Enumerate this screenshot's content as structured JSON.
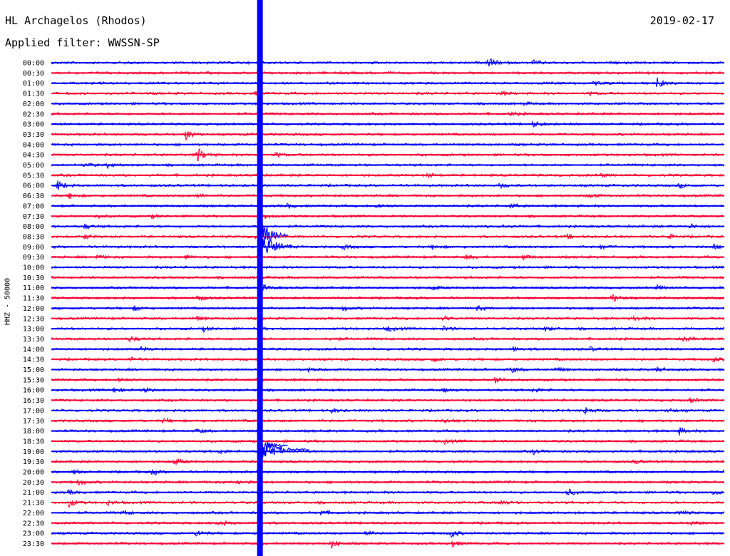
{
  "header": {
    "station": "HL Archagelos (Rhodos)",
    "date": "2019-02-17",
    "filter": "Applied filter: WWSSN-SP"
  },
  "chart_data": {
    "type": "line",
    "ylabel": "HHZ - 50000",
    "row_labels": [
      "00:00",
      "00:30",
      "01:00",
      "01:30",
      "02:00",
      "02:30",
      "03:00",
      "03:30",
      "04:00",
      "04:30",
      "05:00",
      "05:30",
      "06:00",
      "06:30",
      "07:00",
      "07:30",
      "08:00",
      "08:30",
      "09:00",
      "09:30",
      "10:00",
      "10:30",
      "11:00",
      "11:30",
      "12:00",
      "12:30",
      "13:00",
      "13:30",
      "14:00",
      "14:30",
      "15:00",
      "15:30",
      "16:00",
      "16:30",
      "17:00",
      "17:30",
      "18:00",
      "18:30",
      "19:00",
      "19:30",
      "20:00",
      "20:30",
      "21:00",
      "21:30",
      "22:00",
      "22:30",
      "23:00",
      "23:30"
    ],
    "colors": [
      "#0000ff",
      "#ff0033"
    ],
    "bursts_minutes": [
      [
        0,
        19.5,
        8
      ],
      [
        0,
        21.5,
        3
      ],
      [
        2,
        27,
        7
      ],
      [
        2,
        24.2,
        3
      ],
      [
        3,
        9,
        3
      ],
      [
        3,
        20,
        3
      ],
      [
        3,
        24,
        2
      ],
      [
        4,
        21,
        2
      ],
      [
        5,
        20.5,
        3
      ],
      [
        6,
        21.5,
        4
      ],
      [
        7,
        6,
        7
      ],
      [
        9,
        6.5,
        11
      ],
      [
        9,
        10,
        3
      ],
      [
        10,
        1.5,
        3
      ],
      [
        10,
        2.5,
        3
      ],
      [
        11,
        16.8,
        3
      ],
      [
        11,
        24.5,
        2
      ],
      [
        12,
        0.3,
        7
      ],
      [
        12,
        20,
        3
      ],
      [
        12,
        28,
        3
      ],
      [
        13,
        0.8,
        4
      ],
      [
        13,
        6.5,
        3
      ],
      [
        13,
        24,
        3
      ],
      [
        14,
        10.5,
        3
      ],
      [
        14,
        14.5,
        4
      ],
      [
        14,
        20.5,
        3
      ],
      [
        15,
        2,
        3
      ],
      [
        15,
        4.5,
        2
      ],
      [
        15,
        9.5,
        3
      ],
      [
        16,
        1.5,
        3
      ],
      [
        16,
        20,
        3
      ],
      [
        16,
        28.5,
        3
      ],
      [
        17,
        1.5,
        3
      ],
      [
        17,
        9,
        3
      ],
      [
        17,
        23,
        3
      ],
      [
        17,
        27.5,
        3
      ],
      [
        18,
        13,
        3
      ],
      [
        18,
        17,
        3
      ],
      [
        18,
        24.5,
        3
      ],
      [
        18,
        29.5,
        4
      ],
      [
        19,
        2,
        3
      ],
      [
        19,
        6,
        3
      ],
      [
        19,
        18.5,
        3
      ],
      [
        19,
        21,
        4
      ],
      [
        22,
        9.5,
        3
      ],
      [
        22,
        17,
        3
      ],
      [
        22,
        27,
        3
      ],
      [
        23,
        6.5,
        5
      ],
      [
        23,
        25,
        6
      ],
      [
        24,
        3.7,
        3
      ],
      [
        24,
        13,
        3
      ],
      [
        24,
        19,
        3
      ],
      [
        25,
        6.5,
        3
      ],
      [
        25,
        17.5,
        3
      ],
      [
        25,
        26,
        3
      ],
      [
        26,
        6.8,
        3
      ],
      [
        26,
        15,
        4
      ],
      [
        26,
        17.5,
        3
      ],
      [
        26,
        22,
        3
      ],
      [
        27,
        3.5,
        4
      ],
      [
        27,
        12.5,
        3
      ],
      [
        27,
        28.2,
        3
      ],
      [
        28,
        4,
        3
      ],
      [
        28,
        20.6,
        3
      ],
      [
        28,
        24,
        3
      ],
      [
        29,
        3.5,
        3
      ],
      [
        29,
        17,
        3
      ],
      [
        29,
        29.5,
        3
      ],
      [
        30,
        11.5,
        3
      ],
      [
        30,
        20.5,
        4
      ],
      [
        30,
        22.5,
        3
      ],
      [
        30,
        27,
        3
      ],
      [
        31,
        3,
        3
      ],
      [
        31,
        19.8,
        6
      ],
      [
        32,
        2.8,
        4
      ],
      [
        32,
        4.2,
        3
      ],
      [
        32,
        17.5,
        3
      ],
      [
        32,
        21.5,
        3
      ],
      [
        33,
        28.5,
        3
      ],
      [
        34,
        12.5,
        3
      ],
      [
        34,
        23.8,
        5
      ],
      [
        34,
        27.5,
        3
      ],
      [
        35,
        5,
        3
      ],
      [
        35,
        17.5,
        3
      ],
      [
        36,
        6.5,
        3
      ],
      [
        36,
        28,
        5
      ],
      [
        37,
        17.5,
        3
      ],
      [
        38,
        7.5,
        3
      ],
      [
        38,
        21.5,
        3
      ],
      [
        39,
        5.5,
        5
      ],
      [
        39,
        26,
        3
      ],
      [
        40,
        1,
        3
      ],
      [
        40,
        4.5,
        4
      ],
      [
        40,
        29.8,
        3
      ],
      [
        41,
        1.2,
        4
      ],
      [
        41,
        8.3,
        3
      ],
      [
        42,
        0.8,
        3
      ],
      [
        42,
        23,
        5
      ],
      [
        42,
        29.5,
        3
      ],
      [
        43,
        0.8,
        6
      ],
      [
        43,
        2.5,
        3
      ],
      [
        43,
        20,
        3
      ],
      [
        44,
        3.2,
        3
      ],
      [
        44,
        12,
        4
      ],
      [
        44,
        28,
        3
      ],
      [
        45,
        7.5,
        4
      ],
      [
        45,
        28.5,
        3
      ],
      [
        46,
        6.5,
        5
      ],
      [
        46,
        14,
        3
      ],
      [
        46,
        17.8,
        6
      ],
      [
        47,
        12.5,
        6
      ],
      [
        47,
        17.8,
        6
      ]
    ],
    "big_event": {
      "center_minute": 9.3,
      "start_row": 0,
      "end_row": 47
    }
  }
}
